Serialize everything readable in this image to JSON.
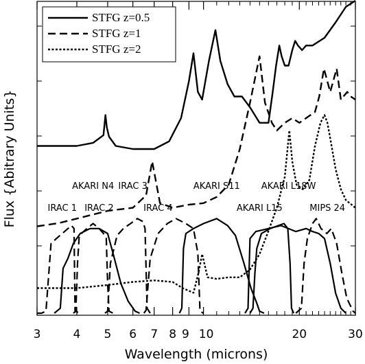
{
  "chart_data": {
    "type": "line",
    "title": "",
    "xlabel": "Wavelength (microns)",
    "ylabel": "Flux {Abitrary Units}",
    "xscale": "log",
    "xlim": [
      3,
      30
    ],
    "x_ticks": [
      3,
      4,
      5,
      6,
      7,
      8,
      9,
      10,
      20,
      30
    ],
    "grid": false,
    "legend_position": "top-left",
    "legend": [
      {
        "name": "STFG z=0.5",
        "style": "solid"
      },
      {
        "name": "STFG z=1",
        "style": "dashed"
      },
      {
        "name": "STFG z=2",
        "style": "dotted"
      }
    ],
    "series": [
      {
        "name": "STFG z=0.5",
        "style": "solid",
        "x": [
          3,
          3.5,
          4,
          4.5,
          4.85,
          4.92,
          4.97,
          5.05,
          5.3,
          6,
          7,
          7.8,
          8.5,
          9.0,
          9.3,
          9.6,
          9.9,
          10.4,
          10.9,
          11.3,
          11.9,
          12.5,
          13.2,
          14,
          15,
          16,
          16.5,
          16.9,
          17.3,
          17.6,
          18,
          18.5,
          19,
          19.4,
          19.8,
          20.4,
          21,
          22,
          24,
          26,
          28,
          30
        ],
        "y": [
          1.3,
          1.3,
          1.3,
          1.32,
          1.37,
          1.5,
          1.42,
          1.36,
          1.3,
          1.28,
          1.28,
          1.33,
          1.48,
          1.72,
          1.9,
          1.65,
          1.6,
          1.85,
          2.05,
          1.85,
          1.7,
          1.62,
          1.62,
          1.55,
          1.45,
          1.45,
          1.65,
          1.82,
          1.95,
          1.88,
          1.82,
          1.82,
          1.92,
          1.98,
          1.95,
          1.92,
          1.95,
          1.95,
          2.0,
          2.1,
          2.2,
          2.24
        ]
      },
      {
        "name": "STFG z=1",
        "style": "dashed",
        "x": [
          3,
          3.5,
          4,
          5,
          6,
          6.6,
          6.9,
          7.3,
          8,
          9,
          10,
          11,
          12,
          13,
          14,
          15,
          15.6,
          16.4,
          17,
          18,
          19,
          20,
          21,
          22.4,
          23.1,
          23.9,
          25,
          26.2,
          27,
          28.3,
          29,
          30
        ],
        "y": [
          0.78,
          0.8,
          0.83,
          0.88,
          0.9,
          0.98,
          1.2,
          0.93,
          0.9,
          0.92,
          0.93,
          0.97,
          1.05,
          1.28,
          1.58,
          1.88,
          1.58,
          1.45,
          1.4,
          1.45,
          1.48,
          1.45,
          1.48,
          1.52,
          1.62,
          1.8,
          1.65,
          1.8,
          1.6,
          1.65,
          1.62,
          1.6
        ]
      },
      {
        "name": "STFG z=2",
        "style": "dotted",
        "x": [
          3,
          4,
          5,
          6,
          7,
          8,
          8.6,
          9.3,
          9.65,
          9.9,
          10.3,
          11,
          12,
          13,
          14,
          15,
          16,
          17,
          18,
          18.6,
          19,
          19.6,
          20.5,
          21.5,
          22.4,
          23.3,
          24,
          24.5,
          25,
          26,
          27,
          28,
          30
        ],
        "y": [
          0.38,
          0.38,
          0.4,
          0.42,
          0.43,
          0.42,
          0.38,
          0.35,
          0.48,
          0.6,
          0.45,
          0.44,
          0.45,
          0.45,
          0.5,
          0.6,
          0.75,
          0.9,
          1.1,
          1.4,
          1.2,
          1.05,
          1.02,
          1.08,
          1.3,
          1.45,
          1.5,
          1.45,
          1.35,
          1.15,
          1.02,
          0.95,
          0.9
        ]
      }
    ],
    "filter_bands": [
      {
        "label": "IRAC 1",
        "label_row": "lower",
        "label_x": 3.6,
        "style": "dashed",
        "x": [
          3.0,
          3.1,
          3.2,
          3.32,
          3.45,
          3.6,
          3.75,
          3.85,
          3.92,
          3.95,
          4.1
        ],
        "y": [
          0,
          0,
          0.02,
          0.7,
          0.75,
          0.8,
          0.85,
          0.88,
          0.85,
          0.02,
          0
        ]
      },
      {
        "label": "IRAC 2",
        "label_row": "lower",
        "label_x": 4.7,
        "style": "dashed",
        "x": [
          3.9,
          3.97,
          4.02,
          4.07,
          4.3,
          4.5,
          4.7,
          4.85,
          4.95,
          5.0,
          5.05,
          5.2
        ],
        "y": [
          0,
          0.02,
          0.5,
          0.78,
          0.85,
          0.9,
          0.85,
          0.8,
          0.75,
          0.3,
          0.02,
          0
        ]
      },
      {
        "label": "IRAC 3",
        "label_row": "upper",
        "label_x": 6.0,
        "style": "dashed",
        "x": [
          4.9,
          5.0,
          5.1,
          5.35,
          5.6,
          5.9,
          6.2,
          6.45,
          6.55,
          6.65,
          6.8
        ],
        "y": [
          0,
          0.02,
          0.5,
          0.78,
          0.85,
          0.9,
          0.95,
          0.92,
          0.85,
          0.05,
          0
        ]
      },
      {
        "label": "IRAC 4",
        "label_row": "lower",
        "label_x": 7.2,
        "style": "dashed",
        "x": [
          6.5,
          6.6,
          6.8,
          7.2,
          7.7,
          8.2,
          8.8,
          9.3,
          9.6,
          9.75,
          10.0
        ],
        "y": [
          0,
          0.03,
          0.55,
          0.8,
          0.9,
          0.95,
          0.9,
          0.85,
          0.6,
          0.02,
          0
        ]
      },
      {
        "label": "AKARI N4",
        "label_row": "upper",
        "label_x": 4.5,
        "style": "solid",
        "x": [
          3.4,
          3.55,
          3.62,
          3.75,
          3.9,
          4.1,
          4.4,
          4.7,
          5.0,
          5.2,
          5.5,
          5.8,
          6.1,
          6.3
        ],
        "y": [
          0,
          0.05,
          0.45,
          0.55,
          0.7,
          0.8,
          0.85,
          0.85,
          0.8,
          0.6,
          0.3,
          0.12,
          0.02,
          0
        ]
      },
      {
        "label": "AKARI S11",
        "label_row": "upper",
        "label_x": 11.0,
        "style": "solid",
        "x": [
          8.4,
          8.55,
          8.65,
          8.8,
          9.3,
          10.0,
          11.0,
          11.9,
          12.6,
          13.4,
          14.1,
          14.7,
          15.0,
          15.5
        ],
        "y": [
          0,
          0.05,
          0.65,
          0.8,
          0.85,
          0.9,
          0.95,
          0.88,
          0.78,
          0.5,
          0.25,
          0.1,
          0.02,
          0
        ]
      },
      {
        "label": "AKARI L15",
        "label_row": "lower",
        "label_x": 15.0,
        "style": "solid",
        "x": [
          14.0,
          14.3,
          14.5,
          14.7,
          15.2,
          16.2,
          17.2,
          17.9,
          18.4,
          18.7,
          18.9,
          19.2
        ],
        "y": [
          0,
          0.05,
          0.4,
          0.65,
          0.8,
          0.85,
          0.88,
          0.9,
          0.85,
          0.5,
          0.05,
          0
        ]
      },
      {
        "label": "AKARI L18W",
        "label_row": "upper",
        "label_x": 18.5,
        "style": "solid",
        "x": [
          13.5,
          13.8,
          14.0,
          14.6,
          16.0,
          17.5,
          19.5,
          21.0,
          22.0,
          23.0,
          24.0,
          25.0,
          26.0,
          27.0,
          28.0
        ],
        "y": [
          0,
          0.05,
          0.75,
          0.82,
          0.85,
          0.88,
          0.82,
          0.85,
          0.82,
          0.8,
          0.75,
          0.5,
          0.2,
          0.05,
          0
        ]
      },
      {
        "label": "MIPS 24",
        "label_row": "lower",
        "label_x": 24.5,
        "style": "dashed",
        "x": [
          19.5,
          20.3,
          20.7,
          21.2,
          22.0,
          22.6,
          23.4,
          24.4,
          25.2,
          26.2,
          27.2,
          28.2,
          29.5,
          30.0
        ],
        "y": [
          0,
          0.05,
          0.5,
          0.75,
          0.9,
          0.95,
          0.85,
          0.8,
          0.85,
          0.7,
          0.4,
          0.15,
          0.02,
          0
        ]
      }
    ]
  }
}
